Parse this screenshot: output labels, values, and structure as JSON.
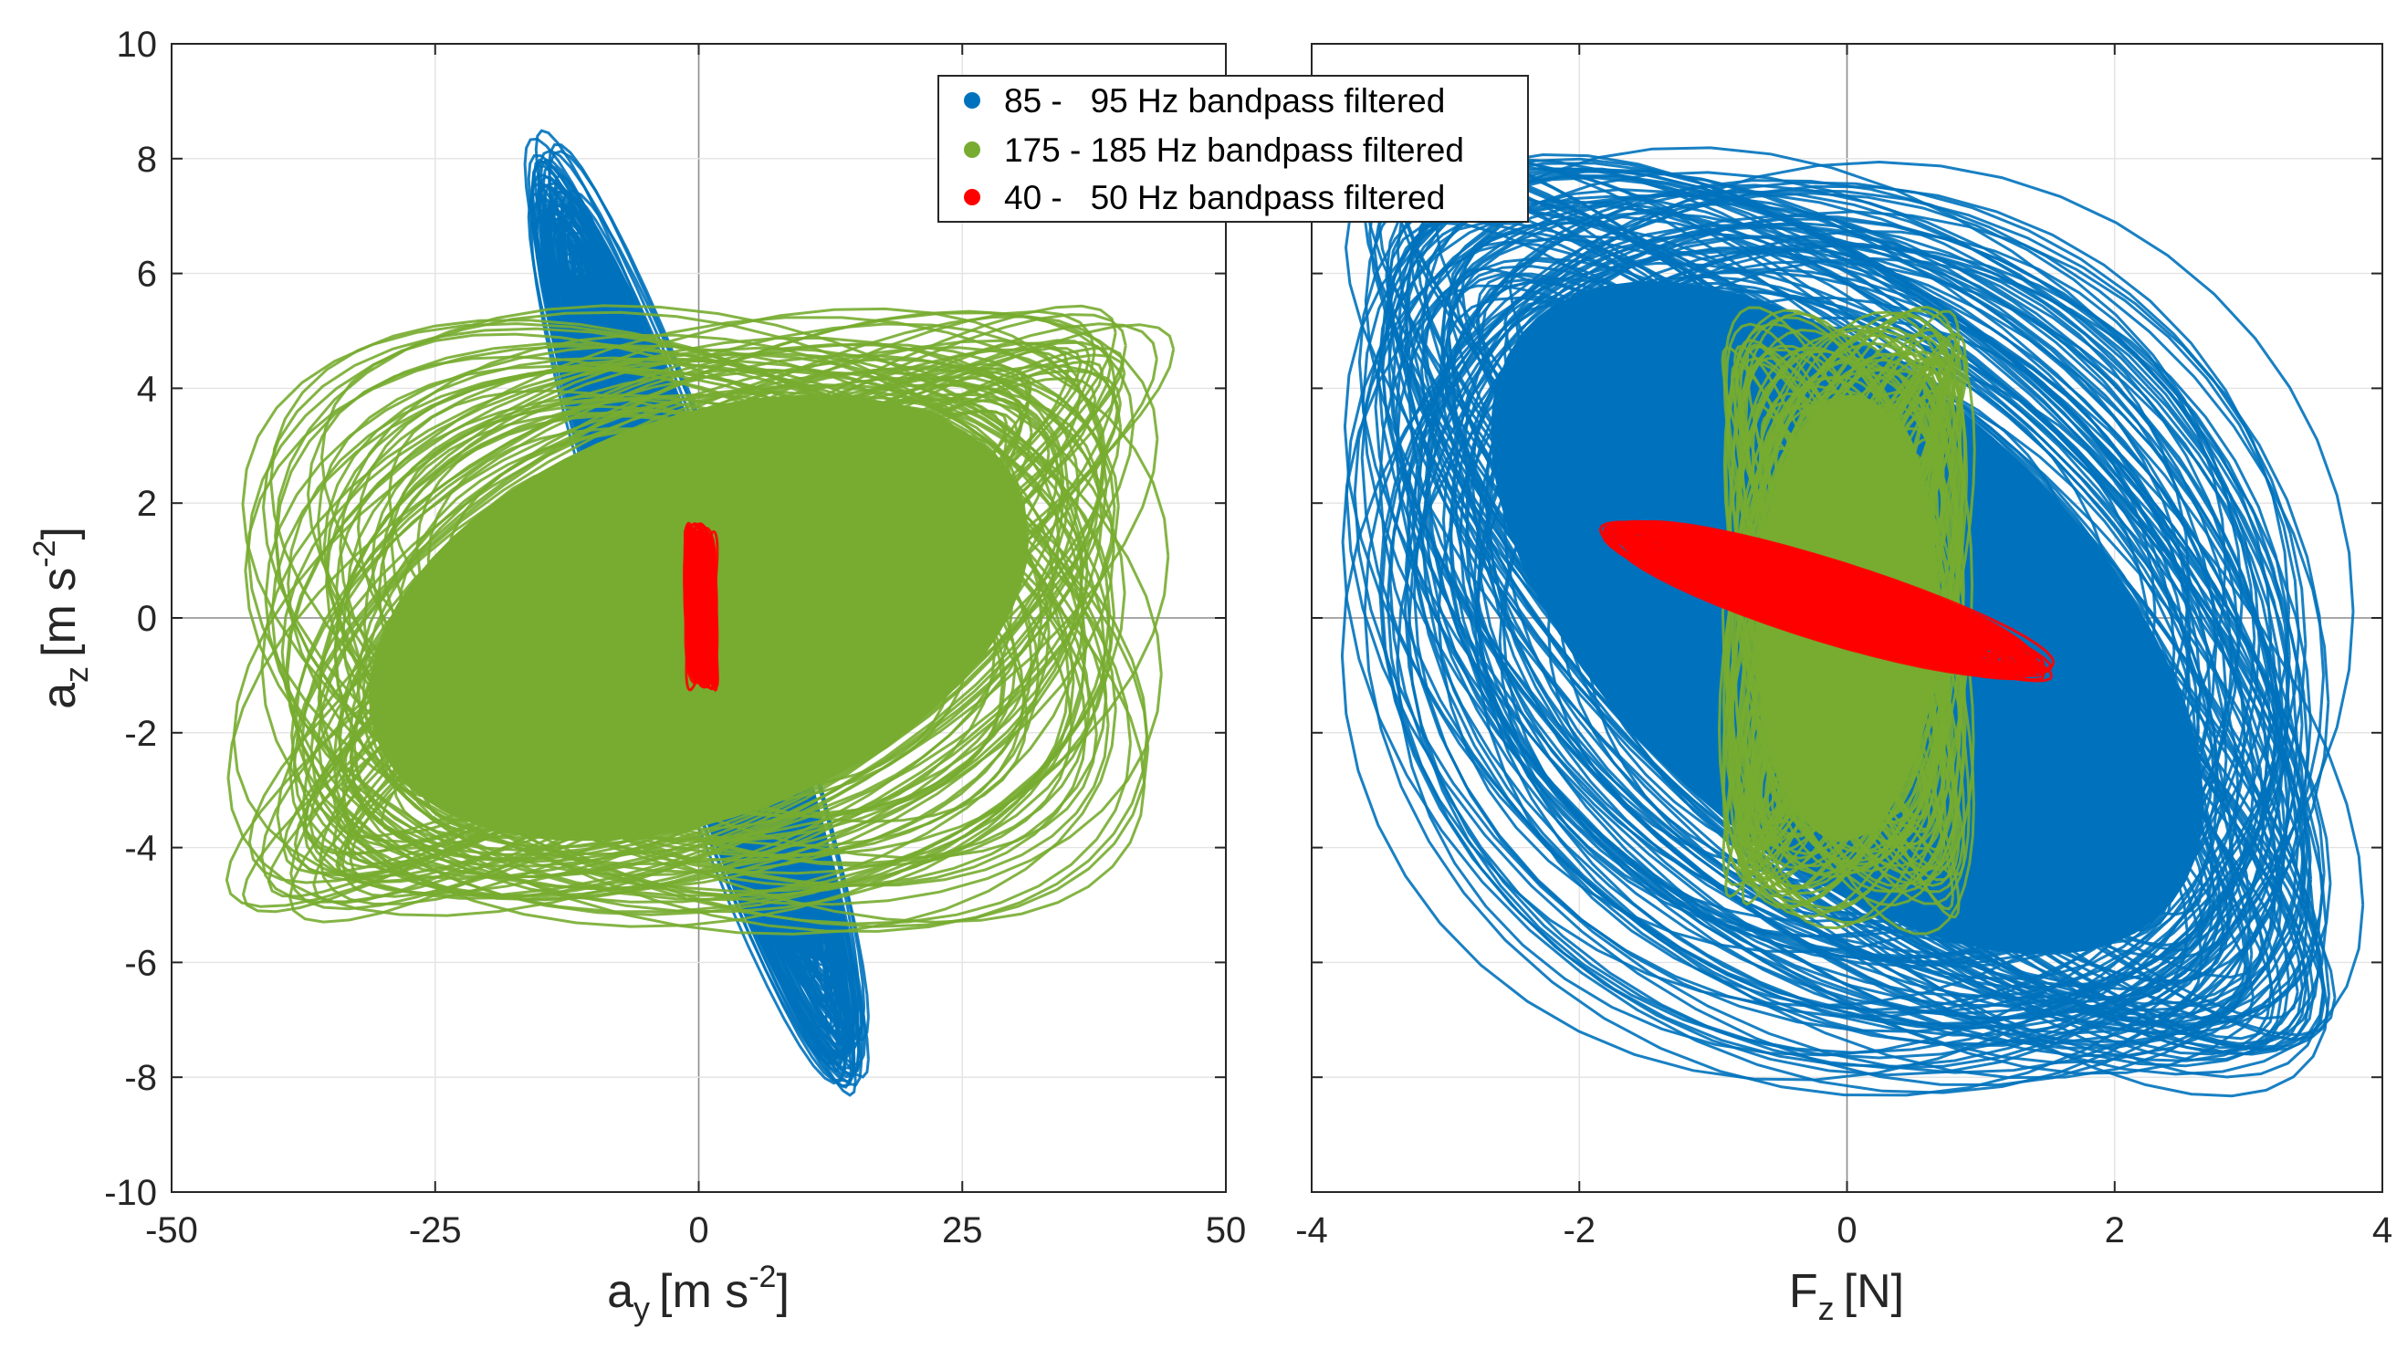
{
  "chart_data": [
    {
      "type": "scatter",
      "title": "",
      "xlabel": "a",
      "xlabel_sub": "y",
      "xlabel_unit": "[m s",
      "xlabel_sup": "-2",
      "xlabel_close": "]",
      "ylabel": "a",
      "ylabel_sub": "z",
      "ylabel_unit": "[m s",
      "ylabel_sup": "-2",
      "ylabel_close": "]",
      "xlim": [
        -50,
        50
      ],
      "ylim": [
        -10,
        10
      ],
      "xticks": [
        -50,
        -25,
        0,
        25,
        50
      ],
      "yticks": [
        -10,
        -8,
        -6,
        -4,
        -2,
        0,
        2,
        4,
        6,
        8,
        10
      ],
      "grid": true,
      "series": [
        {
          "name": "85 - 95 Hz bandpass filtered",
          "color": "#0072BD",
          "center": [
            0,
            0
          ],
          "x_extent": [
            -18,
            14
          ],
          "y_extent": [
            -8.3,
            8.2
          ],
          "correlation": -0.95
        },
        {
          "name": "175 - 185 Hz bandpass filtered",
          "color": "#77AC30",
          "center": [
            0,
            0
          ],
          "x_extent": [
            -46,
            41
          ],
          "y_extent": [
            -5.6,
            5.2
          ],
          "correlation": 0.35
        },
        {
          "name": "40 - 50 Hz bandpass filtered",
          "color": "#FF0000",
          "center": [
            0.2,
            0.2
          ],
          "x_extent": [
            -1.3,
            1.8
          ],
          "y_extent": [
            -1.2,
            1.7
          ],
          "correlation": -0.2
        }
      ]
    },
    {
      "type": "scatter",
      "title": "",
      "xlabel": "F",
      "xlabel_sub": "z",
      "xlabel_unit": "[N]",
      "ylabel": "",
      "xlim": [
        -4,
        4
      ],
      "ylim": [
        -10,
        10
      ],
      "xticks": [
        -4,
        -2,
        0,
        2,
        4
      ],
      "grid": true,
      "series": [
        {
          "name": "85 - 95 Hz bandpass filtered",
          "color": "#0072BD",
          "center": [
            0,
            0
          ],
          "x_extent": [
            -3.7,
            3.7
          ],
          "y_extent": [
            -8.3,
            8.0
          ],
          "correlation": -0.55
        },
        {
          "name": "175 - 185 Hz bandpass filtered",
          "color": "#77AC30",
          "center": [
            0,
            0
          ],
          "x_extent": [
            -1.0,
            0.9
          ],
          "y_extent": [
            -5.6,
            5.2
          ],
          "correlation": 0.05
        },
        {
          "name": "40 - 50 Hz bandpass filtered",
          "color": "#FF0000",
          "center": [
            -0.15,
            0.3
          ],
          "x_extent": [
            -1.8,
            1.5
          ],
          "y_extent": [
            -1.1,
            1.6
          ],
          "correlation": -0.9
        }
      ]
    }
  ],
  "legend": {
    "placement": "top-center",
    "items": [
      {
        "label": "85 -   95 Hz bandpass filtered",
        "color": "#0072BD"
      },
      {
        "label": "175 - 185 Hz bandpass filtered",
        "color": "#77AC30"
      },
      {
        "label": "40 -   50 Hz bandpass filtered",
        "color": "#FF0000"
      }
    ]
  }
}
